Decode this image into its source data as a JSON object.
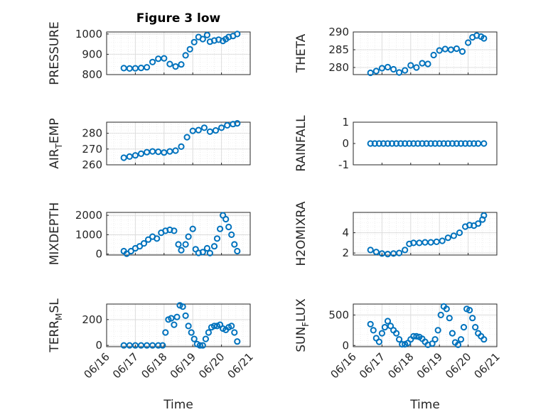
{
  "figure_title": "Figure 3 low",
  "colors": {
    "marker": "#0072BD",
    "axis": "#262626",
    "grid": "#dcdcdc"
  },
  "time_ticks": [
    "06/16",
    "06/17",
    "06/18",
    "06/19",
    "06/20",
    "06/21"
  ],
  "time_label": "Time",
  "chart_data": [
    {
      "type": "scatter",
      "ylabel": "PRESSURE",
      "ylim": [
        800,
        1010
      ],
      "yticks": [
        800,
        900,
        1000
      ],
      "grid": true,
      "x": [
        0.6,
        0.8,
        1.0,
        1.2,
        1.4,
        1.6,
        1.8,
        2.0,
        2.2,
        2.4,
        2.6,
        2.75,
        2.9,
        3.05,
        3.2,
        3.35,
        3.5,
        3.6,
        3.75,
        3.9,
        4.05,
        4.15,
        4.25,
        4.4,
        4.55
      ],
      "y": [
        832,
        830,
        831,
        833,
        836,
        862,
        878,
        880,
        852,
        840,
        850,
        895,
        925,
        960,
        985,
        975,
        995,
        962,
        968,
        972,
        966,
        975,
        985,
        990,
        1000
      ]
    },
    {
      "type": "scatter",
      "ylabel": "THETA",
      "ylim": [
        278,
        290
      ],
      "yticks": [
        280,
        285,
        290
      ],
      "grid": true,
      "x": [
        0.6,
        0.8,
        1.0,
        1.2,
        1.4,
        1.6,
        1.8,
        2.0,
        2.2,
        2.4,
        2.6,
        2.8,
        3.0,
        3.2,
        3.4,
        3.6,
        3.8,
        4.0,
        4.15,
        4.3,
        4.45,
        4.55
      ],
      "y": [
        278.5,
        279.0,
        279.8,
        280.1,
        279.5,
        278.6,
        279.2,
        280.6,
        280.0,
        281.2,
        281.0,
        283.5,
        284.8,
        285.2,
        285.0,
        285.3,
        284.5,
        287.0,
        288.5,
        289.0,
        288.7,
        288.2
      ]
    },
    {
      "type": "scatter",
      "ylabel": "AIR_TEMP",
      "ylim": [
        260,
        287
      ],
      "yticks": [
        260,
        270,
        280
      ],
      "grid": true,
      "x": [
        0.6,
        0.8,
        1.0,
        1.2,
        1.4,
        1.6,
        1.8,
        2.0,
        2.2,
        2.4,
        2.6,
        2.8,
        3.0,
        3.2,
        3.4,
        3.6,
        3.8,
        4.0,
        4.2,
        4.4,
        4.55
      ],
      "y": [
        264.5,
        265.2,
        266.0,
        267.0,
        268.0,
        268.5,
        268.3,
        267.8,
        268.5,
        269.0,
        271.5,
        277.5,
        281.5,
        282.0,
        283.5,
        281.0,
        281.8,
        283.5,
        285.0,
        285.8,
        286.3
      ]
    },
    {
      "type": "scatter",
      "ylabel": "RAINFALL",
      "ylim": [
        -1,
        1
      ],
      "yticks": [
        -1,
        0,
        1
      ],
      "grid": false,
      "x": [
        0.6,
        0.75,
        0.9,
        1.05,
        1.2,
        1.35,
        1.5,
        1.65,
        1.8,
        1.95,
        2.1,
        2.25,
        2.4,
        2.55,
        2.7,
        2.85,
        3.0,
        3.15,
        3.3,
        3.45,
        3.6,
        3.75,
        3.9,
        4.05,
        4.2,
        4.35,
        4.55
      ],
      "y": [
        0,
        0,
        0,
        0,
        0,
        0,
        0,
        0,
        0,
        0,
        0,
        0,
        0,
        0,
        0,
        0,
        0,
        0,
        0,
        0,
        0,
        0,
        0,
        0,
        0,
        0,
        0
      ]
    },
    {
      "type": "scatter",
      "ylabel": "MIXDEPTH",
      "ylim": [
        -50,
        2150
      ],
      "yticks": [
        0,
        1000,
        2000
      ],
      "grid": true,
      "x": [
        0.6,
        0.7,
        0.85,
        1.0,
        1.15,
        1.3,
        1.45,
        1.6,
        1.75,
        1.9,
        2.05,
        2.2,
        2.35,
        2.5,
        2.6,
        2.75,
        2.85,
        3.0,
        3.1,
        3.2,
        3.35,
        3.5,
        3.6,
        3.75,
        3.85,
        3.95,
        4.05,
        4.15,
        4.25,
        4.35,
        4.45,
        4.55
      ],
      "y": [
        150,
        20,
        150,
        300,
        400,
        550,
        750,
        900,
        800,
        1100,
        1200,
        1250,
        1200,
        500,
        200,
        500,
        900,
        1300,
        250,
        60,
        100,
        300,
        50,
        400,
        800,
        1300,
        2000,
        1800,
        1400,
        1000,
        500,
        150
      ]
    },
    {
      "type": "scatter",
      "ylabel": "H2OMIXRA",
      "ylim": [
        1.8,
        6.0
      ],
      "yticks": [
        2,
        4
      ],
      "grid": true,
      "x": [
        0.6,
        0.8,
        1.0,
        1.2,
        1.4,
        1.6,
        1.8,
        1.95,
        2.1,
        2.3,
        2.5,
        2.7,
        2.9,
        3.1,
        3.3,
        3.5,
        3.7,
        3.9,
        4.05,
        4.2,
        4.35,
        4.5,
        4.55
      ],
      "y": [
        2.3,
        2.1,
        1.95,
        1.9,
        1.95,
        2.0,
        2.3,
        2.9,
        3.0,
        3.0,
        3.05,
        3.05,
        3.1,
        3.2,
        3.5,
        3.7,
        4.0,
        4.6,
        4.75,
        4.7,
        4.9,
        5.3,
        5.7
      ]
    },
    {
      "type": "scatter",
      "ylabel": "TERR_MSL",
      "ylim": [
        -10,
        320
      ],
      "yticks": [
        0,
        200
      ],
      "grid": true,
      "x": [
        0.6,
        0.8,
        1.0,
        1.2,
        1.4,
        1.6,
        1.8,
        1.95,
        2.05,
        2.15,
        2.25,
        2.35,
        2.45,
        2.55,
        2.65,
        2.75,
        2.85,
        2.95,
        3.05,
        3.15,
        3.25,
        3.35,
        3.45,
        3.55,
        3.65,
        3.75,
        3.85,
        3.95,
        4.05,
        4.15,
        4.25,
        4.35,
        4.45,
        4.55
      ],
      "y": [
        0,
        0,
        0,
        0,
        0,
        0,
        0,
        0,
        100,
        200,
        210,
        160,
        220,
        310,
        300,
        230,
        150,
        100,
        50,
        10,
        0,
        0,
        50,
        100,
        140,
        150,
        150,
        160,
        130,
        120,
        140,
        150,
        100,
        30
      ]
    },
    {
      "type": "scatter",
      "ylabel": "SUN_FLUX",
      "ylim": [
        -20,
        680
      ],
      "yticks": [
        0,
        500
      ],
      "grid": true,
      "x": [
        0.6,
        0.7,
        0.8,
        0.9,
        1.0,
        1.1,
        1.2,
        1.3,
        1.4,
        1.5,
        1.6,
        1.7,
        1.8,
        1.9,
        2.0,
        2.1,
        2.2,
        2.3,
        2.4,
        2.5,
        2.6,
        2.75,
        2.85,
        2.95,
        3.05,
        3.15,
        3.25,
        3.35,
        3.45,
        3.55,
        3.65,
        3.75,
        3.85,
        3.95,
        4.05,
        4.15,
        4.25,
        4.35,
        4.45,
        4.55
      ],
      "y": [
        350,
        250,
        120,
        60,
        200,
        300,
        400,
        320,
        250,
        200,
        100,
        20,
        20,
        40,
        100,
        150,
        150,
        140,
        110,
        60,
        10,
        30,
        100,
        250,
        500,
        640,
        600,
        450,
        200,
        50,
        10,
        100,
        300,
        600,
        580,
        450,
        300,
        200,
        150,
        100
      ]
    }
  ]
}
